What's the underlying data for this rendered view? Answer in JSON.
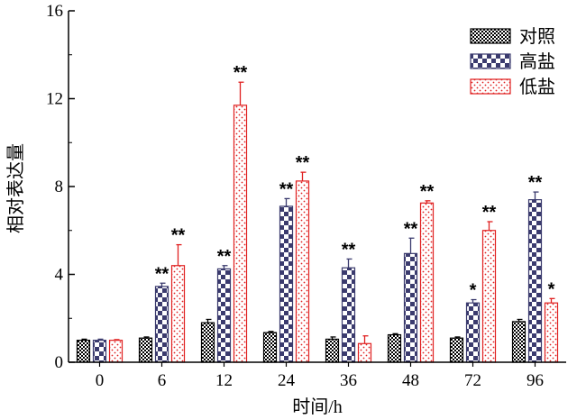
{
  "chart_data": {
    "type": "bar",
    "xlabel": "时间/h",
    "ylabel": "相对表达量",
    "ylim": [
      0,
      16
    ],
    "yticks": [
      0,
      4,
      8,
      12,
      16
    ],
    "categories": [
      "0",
      "6",
      "12",
      "24",
      "36",
      "48",
      "72",
      "96"
    ],
    "legend_position": "top-right",
    "grid": false,
    "series": [
      {
        "name": "对照",
        "pattern": "checker-black",
        "color": "#000000",
        "values": [
          1.0,
          1.1,
          1.8,
          1.35,
          1.05,
          1.25,
          1.1,
          1.85
        ],
        "errors": [
          0.05,
          0.05,
          0.15,
          0.05,
          0.1,
          0.05,
          0.05,
          0.1
        ],
        "annotations": [
          "",
          "",
          "",
          "",
          "",
          "",
          "",
          ""
        ]
      },
      {
        "name": "高盐",
        "pattern": "checker-navy",
        "color": "#3b3b6e",
        "values": [
          1.0,
          3.45,
          4.25,
          7.1,
          4.3,
          4.95,
          2.7,
          7.4
        ],
        "errors": [
          0.05,
          0.15,
          0.15,
          0.35,
          0.4,
          0.7,
          0.15,
          0.35
        ],
        "annotations": [
          "",
          "**",
          "**",
          "**",
          "**",
          "**",
          "*",
          "**"
        ]
      },
      {
        "name": "低盐",
        "pattern": "dots-red",
        "color": "#e02020",
        "values": [
          1.0,
          4.4,
          11.7,
          8.25,
          0.85,
          7.25,
          6.0,
          2.7
        ],
        "errors": [
          0.03,
          0.95,
          1.05,
          0.4,
          0.35,
          0.1,
          0.4,
          0.2
        ],
        "annotations": [
          "",
          "**",
          "**",
          "**",
          "",
          "**",
          "**",
          "*"
        ]
      }
    ]
  }
}
